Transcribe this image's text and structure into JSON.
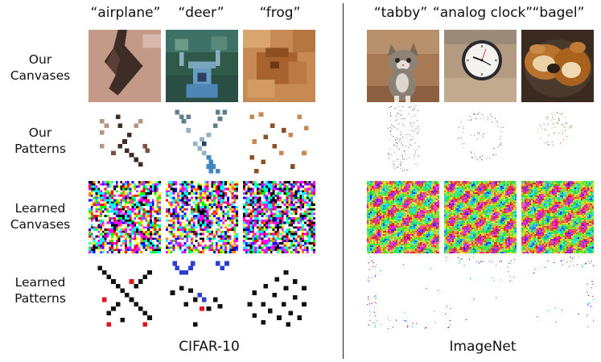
{
  "columns": {
    "cifar": [
      "“airplane”",
      "“deer”",
      "“frog”"
    ],
    "imagenet": [
      "“tabby”",
      "“analog clock”",
      "“bagel”"
    ]
  },
  "rows": [
    {
      "line1": "Our",
      "line2": "Canvases"
    },
    {
      "line1": "Our",
      "line2": "Patterns"
    },
    {
      "line1": "Learned",
      "line2": "Canvases"
    },
    {
      "line1": "Learned",
      "line2": "Patterns"
    }
  ],
  "sections": {
    "left": "CIFAR-10",
    "right": "ImageNet"
  },
  "colors": {
    "rule": "#222222",
    "text": "#111111"
  }
}
